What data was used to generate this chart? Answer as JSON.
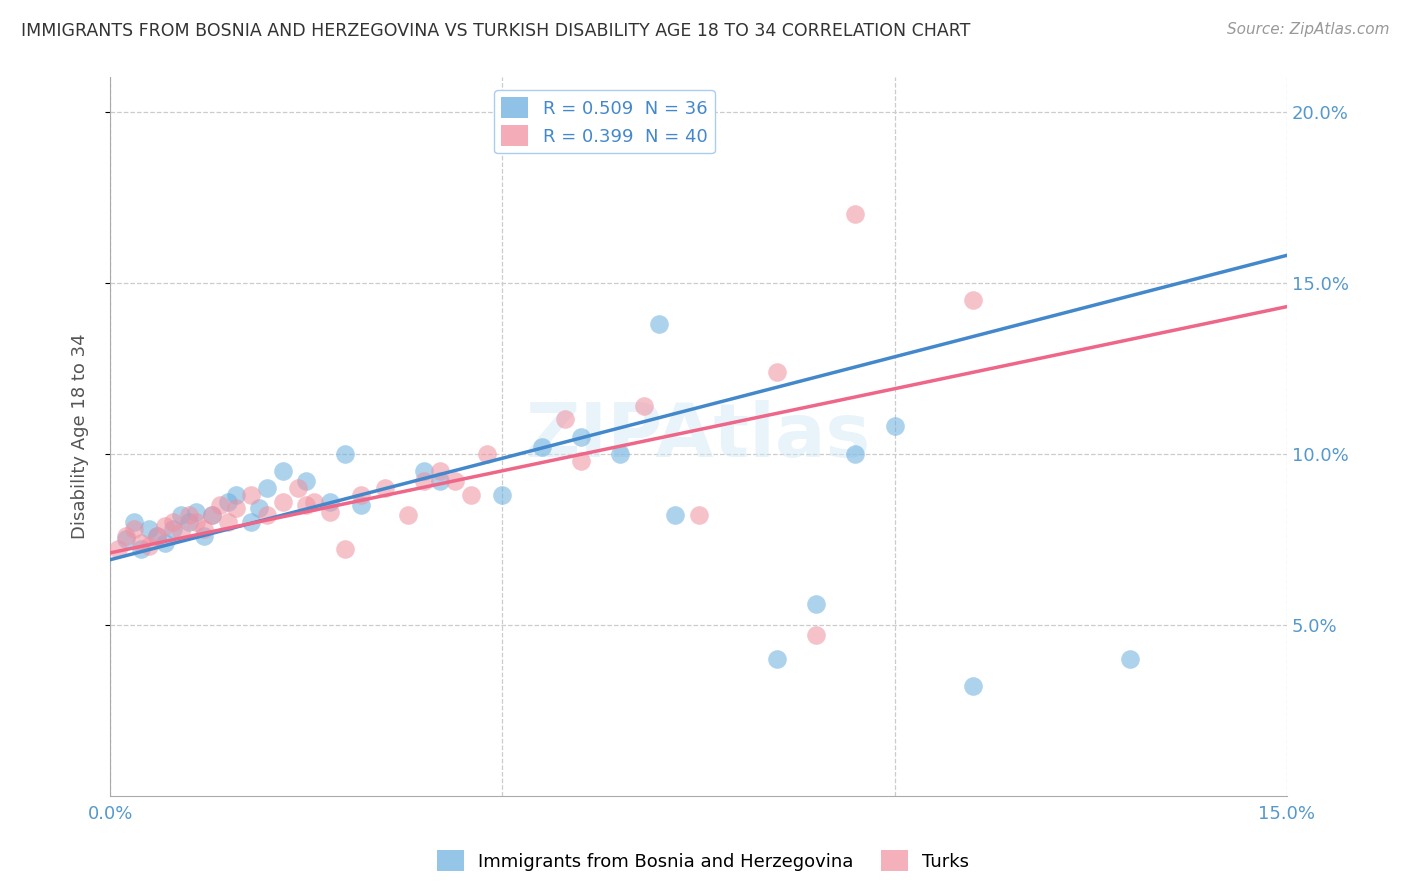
{
  "title": "IMMIGRANTS FROM BOSNIA AND HERZEGOVINA VS TURKISH DISABILITY AGE 18 TO 34 CORRELATION CHART",
  "source": "Source: ZipAtlas.com",
  "ylabel": "Disability Age 18 to 34",
  "xlim": [
    0.0,
    0.15
  ],
  "ylim": [
    0.0,
    0.21
  ],
  "y_ticks": [
    0.05,
    0.1,
    0.15,
    0.2
  ],
  "y_tick_labels": [
    "5.0%",
    "10.0%",
    "15.0%",
    "20.0%"
  ],
  "x_ticks": [
    0.0,
    0.05,
    0.1,
    0.15
  ],
  "x_tick_labels": [
    "0.0%",
    "",
    "",
    "15.0%"
  ],
  "watermark": "ZIPAtlas",
  "series1_name": "Immigrants from Bosnia and Herzegovina",
  "series1_color": "#6aaede",
  "series2_name": "Turks",
  "series2_color": "#f090a0",
  "line1_color": "#4488cc",
  "line2_color": "#ee6688",
  "legend_label1": "R = 0.509  N = 36",
  "legend_label2": "R = 0.399  N = 40",
  "background_color": "#ffffff",
  "grid_color": "#cccccc",
  "series1_x": [
    0.002,
    0.003,
    0.004,
    0.005,
    0.006,
    0.007,
    0.008,
    0.009,
    0.01,
    0.011,
    0.012,
    0.013,
    0.015,
    0.016,
    0.018,
    0.019,
    0.02,
    0.022,
    0.025,
    0.028,
    0.03,
    0.032,
    0.04,
    0.042,
    0.05,
    0.055,
    0.06,
    0.065,
    0.07,
    0.072,
    0.085,
    0.09,
    0.095,
    0.1,
    0.11,
    0.13
  ],
  "series1_y": [
    0.075,
    0.08,
    0.072,
    0.078,
    0.076,
    0.074,
    0.078,
    0.082,
    0.08,
    0.083,
    0.076,
    0.082,
    0.086,
    0.088,
    0.08,
    0.084,
    0.09,
    0.095,
    0.092,
    0.086,
    0.1,
    0.085,
    0.095,
    0.092,
    0.088,
    0.102,
    0.105,
    0.1,
    0.138,
    0.082,
    0.04,
    0.056,
    0.1,
    0.108,
    0.032,
    0.04
  ],
  "series2_x": [
    0.001,
    0.002,
    0.003,
    0.004,
    0.005,
    0.006,
    0.007,
    0.008,
    0.009,
    0.01,
    0.011,
    0.012,
    0.013,
    0.014,
    0.015,
    0.016,
    0.018,
    0.02,
    0.022,
    0.024,
    0.025,
    0.026,
    0.028,
    0.03,
    0.032,
    0.035,
    0.038,
    0.04,
    0.042,
    0.044,
    0.046,
    0.048,
    0.058,
    0.06,
    0.068,
    0.075,
    0.085,
    0.09,
    0.095,
    0.11
  ],
  "series2_y": [
    0.072,
    0.076,
    0.078,
    0.074,
    0.073,
    0.076,
    0.079,
    0.08,
    0.077,
    0.082,
    0.08,
    0.078,
    0.082,
    0.085,
    0.08,
    0.084,
    0.088,
    0.082,
    0.086,
    0.09,
    0.085,
    0.086,
    0.083,
    0.072,
    0.088,
    0.09,
    0.082,
    0.092,
    0.095,
    0.092,
    0.088,
    0.1,
    0.11,
    0.098,
    0.114,
    0.082,
    0.124,
    0.047,
    0.17,
    0.145
  ],
  "line1_y_at_0": 0.069,
  "line1_y_at_015": 0.158,
  "line2_y_at_0": 0.071,
  "line2_y_at_015": 0.143
}
